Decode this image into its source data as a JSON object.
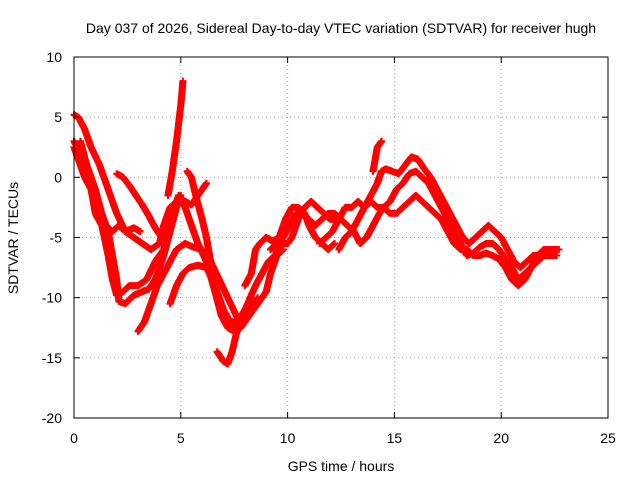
{
  "chart_data": {
    "type": "scatter",
    "title": "Day 037 of 2026, Sidereal Day-to-day VTEC variation (SDTVAR) for receiver hugh",
    "xlabel": "GPS time / hours",
    "ylabel": "SDTVAR / TECUs",
    "xlim": [
      0,
      25
    ],
    "ylim": [
      -20,
      10
    ],
    "xticks": [
      "0",
      "5",
      "10",
      "15",
      "20",
      "25"
    ],
    "yticks": [
      "10",
      "5",
      "0",
      "-5",
      "-10",
      "-15",
      "-20"
    ],
    "grid": true,
    "legend": "none",
    "marker_color": "#ff0000",
    "marker": "plus",
    "series": [
      {
        "points": [
          [
            0.0,
            5.2
          ],
          [
            0.2,
            5.0
          ],
          [
            0.5,
            4.0
          ],
          [
            0.8,
            2.5
          ],
          [
            1.2,
            1.0
          ],
          [
            1.6,
            -1.0
          ],
          [
            2.0,
            -3.0
          ],
          [
            2.4,
            -4.5
          ],
          [
            2.8,
            -5.0
          ],
          [
            3.2,
            -5.5
          ],
          [
            3.6,
            -6.0
          ],
          [
            4.0,
            -5.5
          ],
          [
            4.2,
            -4.0
          ],
          [
            4.5,
            -2.5
          ],
          [
            4.8,
            -2.0
          ],
          [
            5.0,
            -1.8
          ],
          [
            5.2,
            -2.0
          ],
          [
            5.5,
            -2.3
          ],
          [
            5.8,
            -1.5
          ],
          [
            6.0,
            -1.0
          ],
          [
            6.2,
            -0.5
          ]
        ]
      },
      {
        "points": [
          [
            0.0,
            3.0
          ],
          [
            0.3,
            2.0
          ],
          [
            0.6,
            0.5
          ],
          [
            0.9,
            -1.5
          ],
          [
            1.2,
            -3.0
          ],
          [
            1.5,
            -4.0
          ],
          [
            1.8,
            -4.5
          ],
          [
            2.1,
            -4.0
          ],
          [
            2.4,
            -4.5
          ],
          [
            2.8,
            -4.2
          ],
          [
            3.1,
            -4.5
          ]
        ]
      },
      {
        "points": [
          [
            2.0,
            0.3
          ],
          [
            2.3,
            0.0
          ],
          [
            2.6,
            -0.7
          ],
          [
            2.9,
            -1.5
          ],
          [
            3.2,
            -2.3
          ],
          [
            3.5,
            -3.2
          ],
          [
            3.8,
            -4.2
          ],
          [
            4.1,
            -5.0
          ],
          [
            4.3,
            -5.5
          ]
        ]
      },
      {
        "points": [
          [
            0.0,
            2.5
          ],
          [
            0.2,
            1.5
          ],
          [
            0.5,
            0.0
          ],
          [
            0.8,
            -1.0
          ],
          [
            1.0,
            -3.0
          ],
          [
            1.3,
            -4.0
          ],
          [
            1.6,
            -6.5
          ],
          [
            1.8,
            -8.5
          ],
          [
            2.0,
            -9.8
          ],
          [
            2.3,
            -9.5
          ],
          [
            2.6,
            -9.0
          ],
          [
            3.0,
            -9.0
          ],
          [
            3.4,
            -8.5
          ],
          [
            3.8,
            -7.0
          ],
          [
            4.2,
            -6.0
          ],
          [
            4.6,
            -3.0
          ],
          [
            4.9,
            -1.5
          ],
          [
            5.2,
            -2.5
          ],
          [
            5.5,
            -4.0
          ],
          [
            5.8,
            -5.5
          ],
          [
            6.2,
            -7.0
          ],
          [
            6.6,
            -9.5
          ],
          [
            7.0,
            -11.0
          ],
          [
            7.3,
            -12.0
          ],
          [
            7.6,
            -12.0
          ],
          [
            8.0,
            -11.5
          ],
          [
            8.3,
            -11.0
          ],
          [
            8.6,
            -10.0
          ]
        ]
      },
      {
        "points": [
          [
            0.3,
            3.0
          ],
          [
            0.6,
            1.0
          ],
          [
            1.0,
            -1.0
          ],
          [
            1.3,
            -3.0
          ],
          [
            1.6,
            -4.5
          ],
          [
            1.8,
            -6.5
          ],
          [
            2.0,
            -8.5
          ],
          [
            2.1,
            -10.3
          ],
          [
            2.4,
            -10.5
          ],
          [
            2.8,
            -9.8
          ],
          [
            3.2,
            -9.5
          ],
          [
            3.5,
            -9.3
          ],
          [
            3.8,
            -8.5
          ],
          [
            4.2,
            -6.5
          ],
          [
            4.5,
            -4.5
          ],
          [
            4.8,
            -2.5
          ],
          [
            5.0,
            -1.5
          ]
        ]
      },
      {
        "points": [
          [
            3.0,
            -12.8
          ],
          [
            3.3,
            -12.0
          ],
          [
            3.6,
            -10.5
          ],
          [
            3.9,
            -9.0
          ],
          [
            4.2,
            -8.0
          ],
          [
            4.5,
            -7.0
          ],
          [
            4.8,
            -6.0
          ],
          [
            5.2,
            -5.5
          ],
          [
            5.6,
            -5.8
          ],
          [
            6.0,
            -6.0
          ],
          [
            6.4,
            -7.0
          ],
          [
            6.8,
            -8.5
          ],
          [
            7.2,
            -10.0
          ],
          [
            7.6,
            -11.5
          ],
          [
            7.9,
            -12.3
          ]
        ]
      },
      {
        "points": [
          [
            4.4,
            -1.5
          ],
          [
            4.6,
            0.5
          ],
          [
            4.8,
            3.0
          ],
          [
            5.0,
            6.0
          ],
          [
            5.1,
            8.0
          ]
        ]
      },
      {
        "points": [
          [
            4.5,
            -10.5
          ],
          [
            4.8,
            -9.0
          ],
          [
            5.1,
            -8.0
          ],
          [
            5.4,
            -7.5
          ],
          [
            5.8,
            -7.3
          ],
          [
            6.2,
            -7.5
          ],
          [
            6.6,
            -9.0
          ],
          [
            7.0,
            -11.0
          ],
          [
            7.3,
            -12.5
          ],
          [
            7.7,
            -12.0
          ],
          [
            8.0,
            -11.0
          ]
        ]
      },
      {
        "points": [
          [
            5.3,
            0.5
          ],
          [
            5.5,
            0.0
          ],
          [
            5.7,
            -1.5
          ],
          [
            6.0,
            -3.5
          ],
          [
            6.2,
            -5.0
          ],
          [
            6.4,
            -7.0
          ],
          [
            6.6,
            -9.5
          ],
          [
            6.9,
            -11.5
          ],
          [
            7.2,
            -12.5
          ],
          [
            7.5,
            -12.8
          ],
          [
            7.8,
            -12.5
          ],
          [
            8.2,
            -11.5
          ],
          [
            8.6,
            -10.5
          ],
          [
            9.0,
            -9.5
          ],
          [
            9.2,
            -8.0
          ],
          [
            9.5,
            -6.5
          ],
          [
            9.8,
            -6.0
          ]
        ]
      },
      {
        "points": [
          [
            6.7,
            -14.5
          ],
          [
            7.0,
            -15.3
          ],
          [
            7.2,
            -15.5
          ],
          [
            7.4,
            -14.5
          ],
          [
            7.6,
            -13.0
          ],
          [
            7.9,
            -11.5
          ],
          [
            8.2,
            -10.2
          ],
          [
            8.5,
            -9.0
          ],
          [
            8.8,
            -8.0
          ],
          [
            9.1,
            -7.0
          ],
          [
            9.4,
            -6.5
          ],
          [
            9.7,
            -5.5
          ],
          [
            10.0,
            -5.5
          ],
          [
            10.2,
            -5.0
          ],
          [
            10.4,
            -4.0
          ],
          [
            10.6,
            -3.0
          ],
          [
            10.8,
            -2.5
          ],
          [
            11.1,
            -2.0
          ],
          [
            11.4,
            -2.5
          ],
          [
            11.7,
            -3.0
          ],
          [
            12.0,
            -3.5
          ],
          [
            12.3,
            -3.5
          ]
        ]
      },
      {
        "points": [
          [
            8.0,
            -9.0
          ],
          [
            8.3,
            -8.0
          ],
          [
            8.5,
            -6.0
          ],
          [
            8.7,
            -5.5
          ],
          [
            9.0,
            -5.0
          ],
          [
            9.3,
            -5.3
          ],
          [
            9.6,
            -5.0
          ],
          [
            9.9,
            -3.5
          ],
          [
            10.2,
            -2.5
          ],
          [
            10.5,
            -2.5
          ],
          [
            10.8,
            -3.0
          ],
          [
            11.0,
            -4.0
          ],
          [
            11.3,
            -5.0
          ],
          [
            11.6,
            -5.5
          ],
          [
            11.9,
            -6.0
          ],
          [
            12.2,
            -5.5
          ]
        ]
      },
      {
        "points": [
          [
            9.2,
            -6.0
          ],
          [
            9.5,
            -5.5
          ],
          [
            9.8,
            -5.0
          ],
          [
            10.1,
            -4.0
          ],
          [
            10.4,
            -3.0
          ],
          [
            10.7,
            -3.0
          ],
          [
            11.0,
            -3.5
          ],
          [
            11.3,
            -4.0
          ],
          [
            11.6,
            -3.5
          ],
          [
            11.9,
            -3.0
          ],
          [
            12.2,
            -3.0
          ],
          [
            12.5,
            -3.5
          ],
          [
            12.8,
            -4.0
          ],
          [
            13.1,
            -4.5
          ],
          [
            13.4,
            -5.5
          ],
          [
            13.7,
            -5.0
          ],
          [
            14.0,
            -4.0
          ],
          [
            14.3,
            -3.0
          ],
          [
            14.5,
            -2.5
          ]
        ]
      },
      {
        "points": [
          [
            11.5,
            -5.5
          ],
          [
            11.8,
            -5.0
          ],
          [
            12.1,
            -4.5
          ],
          [
            12.4,
            -3.5
          ],
          [
            12.7,
            -2.5
          ],
          [
            13.0,
            -2.5
          ],
          [
            13.3,
            -2.0
          ],
          [
            13.6,
            -2.5
          ],
          [
            13.9,
            -1.5
          ],
          [
            14.2,
            -0.5
          ],
          [
            14.4,
            0.5
          ],
          [
            14.6,
            0.7
          ],
          [
            14.9,
            0.5
          ],
          [
            15.2,
            0.3
          ],
          [
            15.5,
            1.0
          ],
          [
            15.8,
            1.7
          ],
          [
            16.1,
            1.5
          ],
          [
            16.4,
            0.7
          ],
          [
            16.7,
            0.0
          ],
          [
            17.0,
            -1.0
          ],
          [
            17.3,
            -2.0
          ],
          [
            17.6,
            -3.0
          ],
          [
            17.9,
            -4.0
          ],
          [
            18.2,
            -5.0
          ],
          [
            18.5,
            -5.5
          ],
          [
            18.8,
            -5.0
          ],
          [
            19.1,
            -4.5
          ],
          [
            19.4,
            -4.0
          ],
          [
            19.7,
            -4.5
          ],
          [
            20.0,
            -5.0
          ],
          [
            20.3,
            -6.0
          ],
          [
            20.6,
            -7.0
          ],
          [
            20.9,
            -7.5
          ],
          [
            21.2,
            -7.0
          ],
          [
            21.5,
            -6.5
          ],
          [
            21.8,
            -6.5
          ],
          [
            22.1,
            -6.3
          ],
          [
            22.4,
            -6.0
          ],
          [
            22.7,
            -6.0
          ]
        ]
      },
      {
        "points": [
          [
            12.4,
            -6.0
          ],
          [
            12.7,
            -5.0
          ],
          [
            13.0,
            -4.5
          ],
          [
            13.3,
            -3.5
          ],
          [
            13.6,
            -2.5
          ],
          [
            13.9,
            -2.0
          ],
          [
            14.2,
            -2.5
          ],
          [
            14.5,
            -2.5
          ],
          [
            14.8,
            -2.0
          ],
          [
            15.1,
            -1.0
          ],
          [
            15.4,
            -0.5
          ],
          [
            15.7,
            0.3
          ],
          [
            16.0,
            0.5
          ],
          [
            16.3,
            0.0
          ],
          [
            16.6,
            -0.5
          ],
          [
            16.9,
            -1.5
          ],
          [
            17.2,
            -2.5
          ],
          [
            17.5,
            -3.5
          ],
          [
            17.8,
            -4.5
          ],
          [
            18.1,
            -5.5
          ],
          [
            18.4,
            -6.5
          ],
          [
            18.7,
            -6.3
          ],
          [
            19.0,
            -5.8
          ],
          [
            19.3,
            -5.5
          ],
          [
            19.6,
            -5.5
          ],
          [
            19.9,
            -6.0
          ],
          [
            20.2,
            -6.8
          ],
          [
            20.5,
            -7.5
          ],
          [
            20.8,
            -8.5
          ],
          [
            21.1,
            -8.0
          ],
          [
            21.4,
            -7.5
          ],
          [
            21.7,
            -7.0
          ],
          [
            22.0,
            -6.5
          ],
          [
            22.3,
            -6.5
          ],
          [
            22.6,
            -6.5
          ]
        ]
      },
      {
        "points": [
          [
            14.0,
            0.5
          ],
          [
            14.1,
            1.5
          ],
          [
            14.2,
            2.5
          ],
          [
            14.4,
            3.0
          ]
        ]
      },
      {
        "points": [
          [
            14.5,
            -2.5
          ],
          [
            14.8,
            -3.0
          ],
          [
            15.1,
            -3.0
          ],
          [
            15.4,
            -2.5
          ],
          [
            15.7,
            -2.0
          ],
          [
            16.0,
            -1.5
          ],
          [
            16.3,
            -2.0
          ],
          [
            16.6,
            -2.5
          ],
          [
            16.9,
            -3.0
          ],
          [
            17.2,
            -3.5
          ],
          [
            17.5,
            -4.5
          ],
          [
            17.8,
            -5.5
          ],
          [
            18.1,
            -6.0
          ],
          [
            18.4,
            -6.0
          ],
          [
            18.7,
            -6.5
          ],
          [
            19.0,
            -6.5
          ],
          [
            19.3,
            -6.3
          ],
          [
            19.6,
            -6.5
          ],
          [
            19.9,
            -6.8
          ],
          [
            20.2,
            -7.5
          ],
          [
            20.5,
            -8.5
          ],
          [
            20.8,
            -9.0
          ],
          [
            21.1,
            -8.5
          ],
          [
            21.4,
            -7.5
          ],
          [
            21.7,
            -6.5
          ],
          [
            22.0,
            -6.0
          ],
          [
            22.3,
            -6.0
          ],
          [
            22.6,
            -6.0
          ]
        ]
      }
    ]
  }
}
